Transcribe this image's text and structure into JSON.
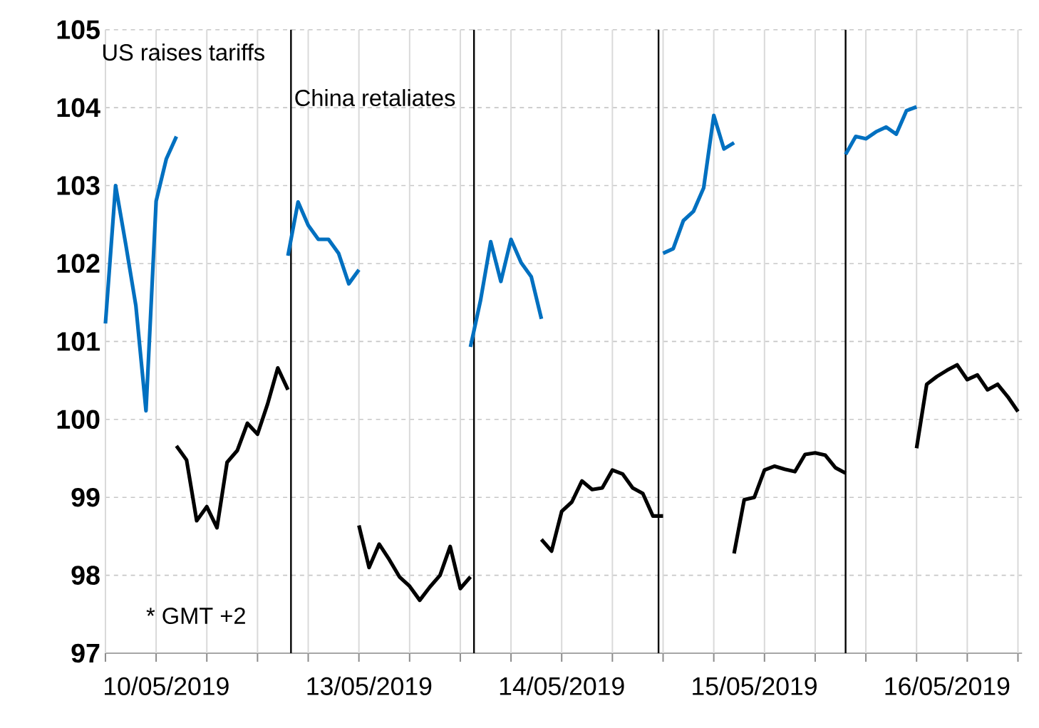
{
  "chart_data": {
    "type": "line",
    "ylim": [
      97,
      105
    ],
    "yticks": [
      97,
      98,
      99,
      100,
      101,
      102,
      103,
      104,
      105
    ],
    "categories": [
      null,
      null,
      null,
      null,
      null,
      null,
      "10/05/2019",
      null,
      null,
      null,
      null,
      null,
      null,
      null,
      null,
      null,
      null,
      null,
      null,
      null,
      null,
      null,
      null,
      null,
      null,
      null,
      "13/05/2019",
      null,
      null,
      null,
      null,
      null,
      null,
      null,
      null,
      null,
      null,
      null,
      null,
      null,
      null,
      null,
      null,
      null,
      null,
      "14/05/2019",
      null,
      null,
      null,
      null,
      null,
      null,
      null,
      null,
      null,
      null,
      null,
      null,
      null,
      null,
      null,
      null,
      null,
      null,
      "15/05/2019",
      null,
      null,
      null,
      null,
      null,
      null,
      null,
      null,
      null,
      null,
      null,
      null,
      null,
      null,
      null,
      null,
      null,
      null,
      "16/05/2019",
      null,
      null,
      null,
      null,
      null,
      null,
      null
    ],
    "grid": true,
    "annotations": [
      "US raises tariffs",
      "China retaliates",
      "* GMT +2"
    ],
    "series": [
      {
        "color": "#0070c0",
        "values": [
          101.23,
          103.0,
          102.25,
          101.46,
          100.11,
          102.8,
          103.34,
          103.63,
          null,
          null,
          null,
          null,
          null,
          null,
          null,
          null,
          null,
          null,
          102.1,
          102.79,
          102.49,
          102.31,
          102.31,
          102.13,
          101.74,
          101.92,
          null,
          null,
          null,
          null,
          null,
          null,
          null,
          null,
          null,
          null,
          100.93,
          101.53,
          102.28,
          101.77,
          102.31,
          102.01,
          101.83,
          101.29,
          null,
          null,
          null,
          null,
          null,
          null,
          null,
          null,
          null,
          null,
          null,
          102.13,
          102.19,
          102.55,
          102.67,
          102.97,
          103.9,
          103.47,
          103.55,
          null,
          null,
          null,
          null,
          null,
          null,
          null,
          null,
          null,
          null,
          103.4,
          103.63,
          103.6,
          103.69,
          103.75,
          103.66,
          103.96,
          104.01,
          null,
          null,
          null,
          null,
          null,
          null,
          null,
          null,
          null,
          null
        ]
      },
      {
        "color": "#000000",
        "values": [
          null,
          null,
          null,
          null,
          null,
          null,
          null,
          99.66,
          99.48,
          98.7,
          98.88,
          98.61,
          99.45,
          99.6,
          99.95,
          99.81,
          100.2,
          100.66,
          100.38,
          null,
          null,
          null,
          null,
          null,
          null,
          98.64,
          98.1,
          98.4,
          98.2,
          97.98,
          97.86,
          97.68,
          97.85,
          98.0,
          98.37,
          97.83,
          97.98,
          null,
          null,
          null,
          null,
          null,
          null,
          98.46,
          98.31,
          98.82,
          98.94,
          99.21,
          99.1,
          99.12,
          99.35,
          99.3,
          99.12,
          99.05,
          98.76,
          98.76,
          null,
          null,
          null,
          null,
          null,
          null,
          98.28,
          98.97,
          99.0,
          99.35,
          99.4,
          99.36,
          99.33,
          99.55,
          99.57,
          99.54,
          99.38,
          99.31,
          null,
          null,
          null,
          null,
          null,
          null,
          99.63,
          100.45,
          100.55,
          100.63,
          100.7,
          100.51,
          100.57,
          100.38,
          100.45,
          100.29,
          100.1
        ]
      }
    ]
  }
}
